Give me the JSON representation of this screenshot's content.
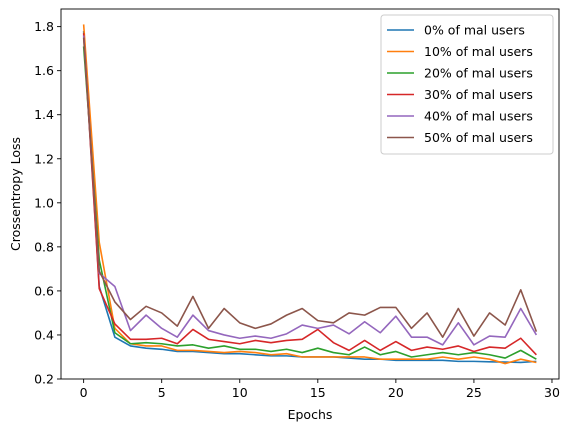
{
  "chart_data": {
    "type": "line",
    "title": "",
    "xlabel": "Epochs",
    "ylabel": "Crossentropy Loss",
    "xlim": [
      -1.45,
      30.45
    ],
    "ylim": [
      0.2,
      1.88
    ],
    "xticks": [
      0,
      5,
      10,
      15,
      20,
      25,
      30
    ],
    "yticks": [
      0.2,
      0.4,
      0.6,
      0.8,
      1.0,
      1.2,
      1.4,
      1.6,
      1.8
    ],
    "grid": false,
    "legend_position": "top-right",
    "x": [
      0,
      1,
      2,
      3,
      4,
      5,
      6,
      7,
      8,
      9,
      10,
      11,
      12,
      13,
      14,
      15,
      16,
      17,
      18,
      19,
      20,
      21,
      22,
      23,
      24,
      25,
      26,
      27,
      28,
      29
    ],
    "series": [
      {
        "name": "0% of mal users",
        "color": "#1f77b4",
        "values": [
          1.78,
          0.62,
          0.39,
          0.35,
          0.34,
          0.335,
          0.325,
          0.325,
          0.32,
          0.315,
          0.315,
          0.31,
          0.305,
          0.305,
          0.3,
          0.3,
          0.3,
          0.295,
          0.29,
          0.29,
          0.285,
          0.285,
          0.285,
          0.285,
          0.28,
          0.28,
          0.278,
          0.277,
          0.275,
          0.28
        ]
      },
      {
        "name": "10% of mal users",
        "color": "#ff7f0e",
        "values": [
          1.81,
          0.82,
          0.43,
          0.36,
          0.35,
          0.35,
          0.33,
          0.33,
          0.325,
          0.32,
          0.325,
          0.32,
          0.31,
          0.315,
          0.3,
          0.3,
          0.3,
          0.3,
          0.3,
          0.29,
          0.29,
          0.29,
          0.29,
          0.3,
          0.29,
          0.3,
          0.29,
          0.27,
          0.29,
          0.275
        ]
      },
      {
        "name": "20% of mal users",
        "color": "#2ca02c",
        "values": [
          1.71,
          0.74,
          0.41,
          0.36,
          0.365,
          0.36,
          0.35,
          0.355,
          0.34,
          0.35,
          0.335,
          0.335,
          0.325,
          0.335,
          0.32,
          0.34,
          0.32,
          0.31,
          0.345,
          0.31,
          0.325,
          0.3,
          0.31,
          0.32,
          0.31,
          0.32,
          0.31,
          0.295,
          0.33,
          0.29
        ]
      },
      {
        "name": "30% of mal users",
        "color": "#d62728",
        "values": [
          1.77,
          0.61,
          0.45,
          0.38,
          0.38,
          0.385,
          0.36,
          0.425,
          0.38,
          0.37,
          0.36,
          0.375,
          0.365,
          0.375,
          0.38,
          0.425,
          0.365,
          0.33,
          0.375,
          0.33,
          0.37,
          0.33,
          0.345,
          0.335,
          0.35,
          0.325,
          0.345,
          0.34,
          0.385,
          0.31
        ]
      },
      {
        "name": "40% of mal users",
        "color": "#9467bd",
        "values": [
          1.76,
          0.68,
          0.62,
          0.42,
          0.49,
          0.43,
          0.39,
          0.49,
          0.42,
          0.4,
          0.385,
          0.395,
          0.385,
          0.405,
          0.445,
          0.43,
          0.445,
          0.405,
          0.46,
          0.41,
          0.485,
          0.39,
          0.39,
          0.355,
          0.455,
          0.355,
          0.395,
          0.39,
          0.52,
          0.4
        ]
      },
      {
        "name": "50% of mal users",
        "color": "#8c564b",
        "values": [
          1.75,
          0.69,
          0.55,
          0.47,
          0.53,
          0.5,
          0.44,
          0.575,
          0.43,
          0.52,
          0.455,
          0.43,
          0.45,
          0.49,
          0.52,
          0.465,
          0.455,
          0.5,
          0.49,
          0.525,
          0.525,
          0.43,
          0.5,
          0.39,
          0.52,
          0.395,
          0.5,
          0.445,
          0.605,
          0.415
        ]
      }
    ]
  }
}
